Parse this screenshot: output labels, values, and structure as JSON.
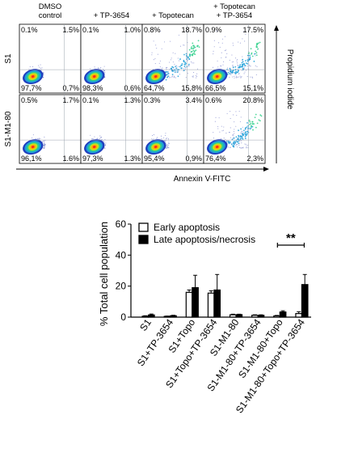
{
  "flow": {
    "columns": [
      "DMSO\ncontrol",
      "+ TP-3654",
      "+ Topotecan",
      "+ Topotecan\n+ TP-3654"
    ],
    "rows": [
      "S1",
      "S1-M1-80"
    ],
    "x_axis_label": "Annexin V-FITC",
    "y_axis_label": "Propidium iodide",
    "panels": [
      [
        {
          "ul": "0.1%",
          "ur": "1.5%",
          "ll": "97,7%",
          "lr": "0,7%"
        },
        {
          "ul": "0.1%",
          "ur": "1.0%",
          "ll": "98,3%",
          "lr": "0,6%"
        },
        {
          "ul": "0.8%",
          "ur": "18.7%",
          "ll": "64,7%",
          "lr": "15,8%"
        },
        {
          "ul": "0.9%",
          "ur": "17.5%",
          "ll": "66,5%",
          "lr": "15,1%"
        }
      ],
      [
        {
          "ul": "0.5%",
          "ur": "1.7%",
          "ll": "96,1%",
          "lr": "1.6%"
        },
        {
          "ul": "0.1%",
          "ur": "1.3%",
          "ll": "97,3%",
          "lr": "1.3%"
        },
        {
          "ul": "0.3%",
          "ur": "3.4%",
          "ll": "95,4%",
          "lr": "0,9%"
        },
        {
          "ul": "0.6%",
          "ur": "20.8%",
          "ll": "76,4%",
          "lr": "2,3%"
        }
      ]
    ]
  },
  "chart_data": {
    "type": "bar",
    "ylabel": "% Total cell population",
    "ylim": [
      0,
      60
    ],
    "yticks": [
      0,
      20,
      40,
      60
    ],
    "categories": [
      "S1",
      "S1+TP-3654",
      "S1+Topo",
      "S1+Topo+TP-3654",
      "S1-M1-80",
      "S1-M1-80+TP-3654",
      "S1-M1-80+Topo",
      "S1-M1-80+Topo+TP-3654"
    ],
    "series": [
      {
        "name": "Early apoptosis",
        "fill": "#ffffff",
        "values": [
          0.6,
          0.5,
          16,
          15.5,
          1.5,
          1.2,
          0.8,
          2.3
        ],
        "errors": [
          0.3,
          0.2,
          1.5,
          1.5,
          0.4,
          0.3,
          0.3,
          1.2
        ]
      },
      {
        "name": "Late apoptosis/necrosis",
        "fill": "#000000",
        "values": [
          1.4,
          0.9,
          19,
          17.5,
          1.6,
          1.2,
          3.3,
          21
        ],
        "errors": [
          0.6,
          0.3,
          8,
          10,
          0.3,
          0.3,
          0.8,
          6.5
        ]
      }
    ],
    "legend": "top-left",
    "significance": {
      "label": "**",
      "between": [
        6,
        7
      ]
    }
  }
}
